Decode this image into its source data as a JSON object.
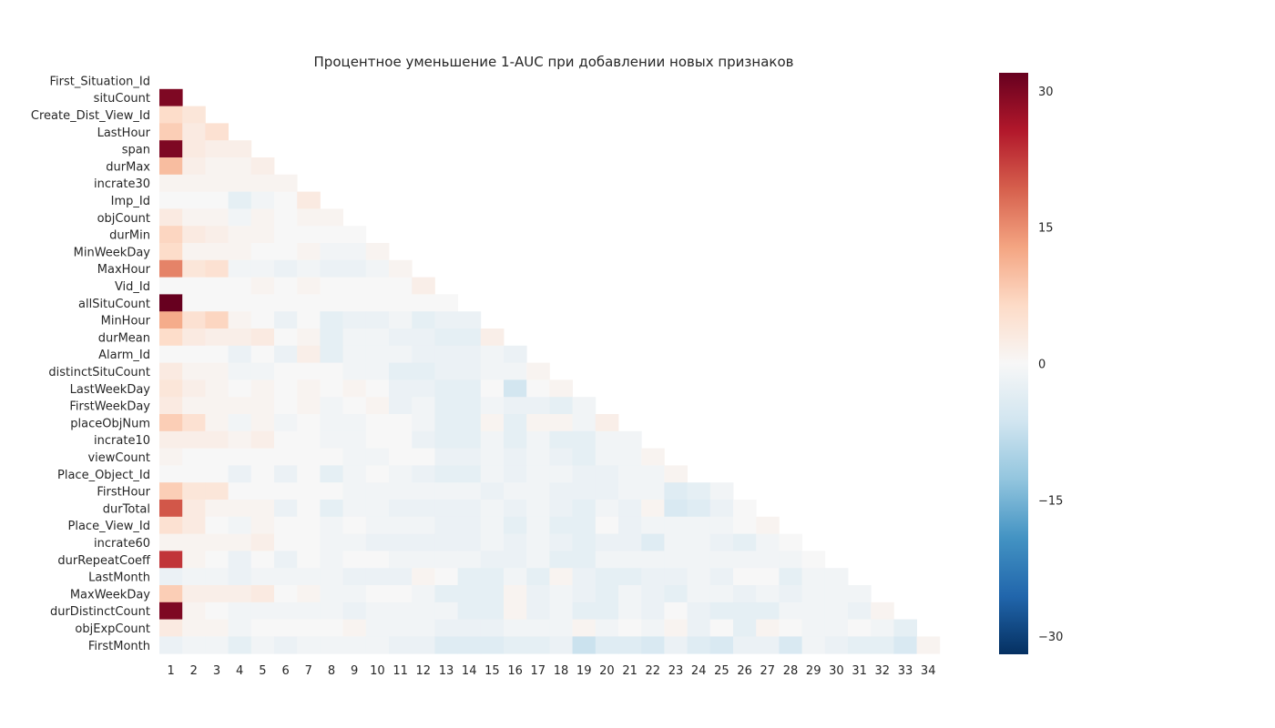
{
  "chart_data": {
    "type": "heatmap",
    "title": "Процентное уменьшение 1-AUC при добавлении новых признаков",
    "xlabel": "",
    "ylabel": "",
    "mask": "lower-triangle (cell shown only when column < row)",
    "row_labels": [
      "First_Situation_Id",
      "situCount",
      "Create_Dist_View_Id",
      "LastHour",
      "span",
      "durMax",
      "incrate30",
      "Imp_Id",
      "objCount",
      "durMin",
      "MinWeekDay",
      "MaxHour",
      "Vid_Id",
      "allSituCount",
      "MinHour",
      "durMean",
      "Alarm_Id",
      "distinctSituCount",
      "LastWeekDay",
      "FirstWeekDay",
      "placeObjNum",
      "incrate10",
      "viewCount",
      "Place_Object_Id",
      "FirstHour",
      "durTotal",
      "Place_View_Id",
      "incrate60",
      "durRepeatCoeff",
      "LastMonth",
      "MaxWeekDay",
      "durDistinctCount",
      "objExpCount",
      "FirstMonth"
    ],
    "col_labels": [
      "1",
      "2",
      "3",
      "4",
      "5",
      "6",
      "7",
      "8",
      "9",
      "10",
      "11",
      "12",
      "13",
      "14",
      "15",
      "16",
      "17",
      "18",
      "19",
      "20",
      "21",
      "22",
      "23",
      "24",
      "25",
      "26",
      "27",
      "28",
      "29",
      "30",
      "31",
      "32",
      "33",
      "34"
    ],
    "values": [
      [],
      [
        30
      ],
      [
        6,
        4
      ],
      [
        8,
        3,
        5
      ],
      [
        30,
        3,
        2,
        2
      ],
      [
        10,
        2,
        1,
        1,
        2
      ],
      [
        1,
        1,
        1,
        1,
        1,
        1
      ],
      [
        0,
        0,
        0,
        -3,
        -1,
        0,
        3
      ],
      [
        3,
        1,
        1,
        -1,
        1,
        0,
        1,
        1
      ],
      [
        7,
        3,
        2,
        1,
        1,
        0,
        0,
        0,
        0
      ],
      [
        6,
        1,
        1,
        1,
        0,
        0,
        1,
        -1,
        -1,
        1
      ],
      [
        16,
        4,
        5,
        -1,
        -1,
        -2,
        -1,
        -2,
        -2,
        -1,
        1
      ],
      [
        0,
        0,
        0,
        0,
        1,
        0,
        1,
        0,
        0,
        0,
        0,
        2
      ],
      [
        32,
        0,
        0,
        0,
        0,
        0,
        0,
        0,
        0,
        0,
        0,
        0,
        0
      ],
      [
        12,
        5,
        7,
        1,
        0,
        -2,
        0,
        -3,
        -2,
        -2,
        -1,
        -3,
        -2,
        -2
      ],
      [
        6,
        3,
        2,
        2,
        3,
        0,
        1,
        -3,
        -1,
        -1,
        -2,
        -2,
        -3,
        -3,
        2
      ],
      [
        0,
        0,
        0,
        -2,
        0,
        -2,
        2,
        -3,
        -1,
        -1,
        -1,
        -2,
        -2,
        -2,
        -1,
        -2
      ],
      [
        3,
        1,
        1,
        -1,
        -1,
        0,
        0,
        0,
        -1,
        -1,
        -3,
        -3,
        -2,
        -2,
        -1,
        -1,
        1
      ],
      [
        4,
        2,
        1,
        0,
        1,
        0,
        1,
        0,
        1,
        0,
        -2,
        -2,
        -3,
        -3,
        0,
        -6,
        0,
        1
      ],
      [
        3,
        1,
        1,
        1,
        1,
        0,
        1,
        -1,
        0,
        1,
        -2,
        -1,
        -3,
        -3,
        -1,
        -2,
        -2,
        -3,
        -1
      ],
      [
        8,
        5,
        1,
        -1,
        1,
        -1,
        0,
        -1,
        -1,
        0,
        0,
        -1,
        -3,
        -3,
        1,
        -3,
        1,
        1,
        -1,
        2
      ],
      [
        2,
        2,
        2,
        1,
        2,
        0,
        0,
        -1,
        -1,
        0,
        0,
        -2,
        -3,
        -3,
        -1,
        -3,
        -1,
        -3,
        -3,
        -1,
        -1
      ],
      [
        1,
        0,
        0,
        0,
        0,
        0,
        0,
        0,
        -1,
        -1,
        0,
        0,
        -2,
        -2,
        -1,
        -2,
        -1,
        -2,
        -3,
        -1,
        -1,
        1
      ],
      [
        0,
        0,
        0,
        -2,
        0,
        -2,
        0,
        -3,
        -1,
        0,
        -1,
        -2,
        -3,
        -3,
        -1,
        -2,
        -1,
        -1,
        -2,
        -2,
        -1,
        -1,
        1
      ],
      [
        8,
        4,
        4,
        0,
        0,
        0,
        0,
        0,
        -1,
        -1,
        -1,
        -1,
        -1,
        -1,
        -2,
        -1,
        -1,
        -2,
        -2,
        -2,
        -1,
        -1,
        -4,
        -3,
        -1
      ],
      [
        20,
        3,
        1,
        1,
        1,
        -2,
        0,
        -3,
        -1,
        -1,
        -2,
        -2,
        -2,
        -2,
        -1,
        -2,
        -1,
        -2,
        -3,
        -1,
        -2,
        1,
        -5,
        -4,
        -2,
        0
      ],
      [
        5,
        3,
        0,
        -1,
        1,
        0,
        0,
        -1,
        0,
        -1,
        -1,
        -1,
        -2,
        -2,
        -1,
        -3,
        -1,
        -3,
        -3,
        0,
        -2,
        -1,
        -1,
        -1,
        -1,
        0,
        1
      ],
      [
        1,
        1,
        1,
        1,
        2,
        0,
        0,
        -1,
        -1,
        -2,
        -2,
        -2,
        -2,
        -2,
        -1,
        -2,
        -1,
        -2,
        -3,
        -2,
        -2,
        -4,
        -1,
        -1,
        -2,
        -3,
        -1,
        0
      ],
      [
        23,
        1,
        0,
        -2,
        0,
        -2,
        0,
        -1,
        0,
        0,
        -1,
        -1,
        -1,
        -1,
        -2,
        -2,
        -1,
        -3,
        -3,
        -1,
        -1,
        -1,
        -1,
        -1,
        -1,
        -1,
        -1,
        -1,
        0
      ],
      [
        -2,
        -1,
        -1,
        -2,
        -1,
        -1,
        -1,
        -1,
        -2,
        -2,
        -2,
        1,
        0,
        -3,
        -3,
        -1,
        -3,
        1,
        -2,
        -3,
        -3,
        -2,
        -2,
        -1,
        -2,
        0,
        0,
        -3,
        -1,
        -1
      ],
      [
        8,
        2,
        2,
        2,
        3,
        0,
        1,
        -1,
        -1,
        0,
        0,
        -1,
        -3,
        -3,
        -3,
        1,
        -2,
        -1,
        -2,
        -3,
        -1,
        -2,
        -3,
        -1,
        -1,
        -2,
        -1,
        -2,
        -1,
        -1,
        -1
      ],
      [
        30,
        1,
        0,
        -1,
        -1,
        -1,
        -1,
        -1,
        -2,
        -1,
        -1,
        -1,
        -1,
        -3,
        -3,
        1,
        -2,
        -1,
        -3,
        -3,
        -1,
        -2,
        0,
        -2,
        -3,
        -3,
        -3,
        -1,
        -1,
        -1,
        -2,
        1
      ],
      [
        3,
        1,
        1,
        -1,
        0,
        0,
        0,
        0,
        1,
        -1,
        -1,
        -1,
        -2,
        -2,
        -2,
        -1,
        -1,
        -1,
        1,
        -1,
        0,
        -1,
        1,
        -2,
        0,
        -3,
        1,
        0,
        -1,
        -1,
        0,
        -1,
        -3
      ],
      [
        -2,
        -1,
        -1,
        -3,
        -1,
        -2,
        -1,
        -1,
        -1,
        -1,
        -2,
        -2,
        -4,
        -4,
        -4,
        -3,
        -3,
        -2,
        -7,
        -4,
        -4,
        -5,
        -2,
        -4,
        -5,
        -2,
        -2,
        -5,
        -1,
        -2,
        -3,
        -3,
        -5,
        1
      ]
    ],
    "colorbar": {
      "min": -32,
      "max": 32,
      "ticks": [
        30,
        15,
        0,
        -15,
        -30
      ],
      "tick_labels": [
        "30",
        "15",
        "0",
        "−15",
        "−30"
      ],
      "colormap": "RdBu_r"
    },
    "grid": false
  }
}
